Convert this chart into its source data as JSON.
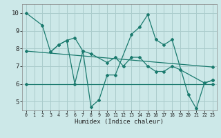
{
  "title": "",
  "xlabel": "Humidex (Indice chaleur)",
  "bg_color": "#cce8e8",
  "grid_color": "#aacccc",
  "line_color": "#1a7a6e",
  "xlim": [
    -0.5,
    23.5
  ],
  "ylim": [
    4.5,
    10.5
  ],
  "xticks": [
    0,
    1,
    2,
    3,
    4,
    5,
    6,
    7,
    8,
    9,
    10,
    11,
    12,
    13,
    14,
    15,
    16,
    17,
    18,
    19,
    20,
    21,
    22,
    23
  ],
  "yticks": [
    5,
    6,
    7,
    8,
    9,
    10
  ],
  "lines": [
    {
      "x": [
        0,
        2,
        3,
        4,
        5,
        6,
        7,
        8,
        9,
        10,
        11,
        13,
        14,
        15,
        16,
        17,
        18,
        20,
        21,
        22,
        23
      ],
      "y": [
        10.0,
        9.3,
        7.8,
        8.2,
        8.45,
        6.0,
        7.85,
        4.7,
        5.1,
        6.5,
        6.5,
        8.8,
        9.2,
        9.9,
        8.5,
        8.2,
        8.5,
        5.4,
        4.6,
        6.05,
        6.2
      ]
    },
    {
      "x": [
        3,
        4,
        5,
        6,
        7,
        8,
        10,
        11,
        12,
        13,
        14,
        15,
        16,
        17,
        18,
        19,
        22,
        23
      ],
      "y": [
        7.8,
        8.2,
        8.45,
        8.6,
        7.85,
        7.7,
        7.2,
        7.5,
        7.0,
        7.5,
        7.5,
        7.0,
        6.7,
        6.7,
        7.0,
        6.8,
        6.05,
        6.2
      ]
    },
    {
      "x": [
        0,
        23
      ],
      "y": [
        7.85,
        6.95
      ]
    },
    {
      "x": [
        0,
        23
      ],
      "y": [
        6.0,
        6.0
      ]
    }
  ]
}
